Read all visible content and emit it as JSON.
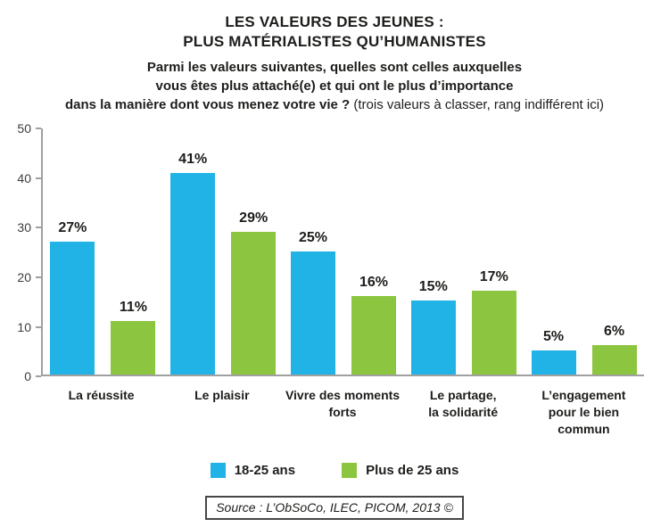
{
  "header": {
    "title_line1": "LES VALEURS DES JEUNES :",
    "title_line2": "PLUS MATÉRIALISTES QU’HUMANISTES",
    "question_line1": "Parmi les valeurs suivantes, quelles sont celles auxquelles",
    "question_line2": "vous êtes plus attaché(e) et qui ont le plus d’importance",
    "question_line3_bold": "dans la manière dont vous menez votre vie ?",
    "question_line3_note": "(trois valeurs à classer, rang indifférent ici)"
  },
  "footer": {
    "source": "Source : L’ObSoCo, ILEC, PICOM, 2013 ©"
  },
  "colors": {
    "series_18_25": "#21b3e6",
    "series_plus_25": "#8cc53f",
    "axis": "#a0a0a0",
    "text": "#1d1d1b"
  },
  "chart_data": {
    "type": "bar",
    "title": "LES VALEURS DES JEUNES : PLUS MATÉRIALISTES QU’HUMANISTES",
    "subtitle": "Parmi les valeurs suivantes, quelles sont celles auxquelles vous êtes plus attaché(e) et qui ont le plus d’importance dans la manière dont vous menez votre vie ? (trois valeurs à classer, rang indifférent ici)",
    "categories": [
      "La réussite",
      "Le plaisir",
      "Vivre des moments forts",
      "Le partage, la solidarité",
      "L’engagement pour le bien commun"
    ],
    "series": [
      {
        "name": "18-25 ans",
        "color": "#21b3e6",
        "values": [
          27,
          41,
          25,
          15,
          5
        ]
      },
      {
        "name": "Plus de 25 ans",
        "color": "#8cc53f",
        "values": [
          11,
          29,
          16,
          17,
          6
        ]
      }
    ],
    "value_suffix": "%",
    "xlabel": "",
    "ylabel": "",
    "ylim": [
      0,
      50
    ],
    "yticks": [
      0,
      10,
      20,
      30,
      40,
      50
    ],
    "grid": false,
    "legend_position": "bottom"
  }
}
